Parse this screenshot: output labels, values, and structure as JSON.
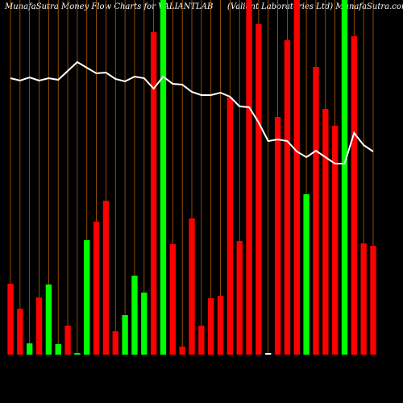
{
  "chart_data": {
    "type": "bar",
    "title": "MunafaSutra  Money Flow  Charts for VALIANTLAB",
    "subtitle": "(Valiant Laboratories Ltd)  MunafaSutra.com",
    "categories": [
      null,
      null,
      null,
      null,
      null,
      null,
      null,
      null,
      null,
      null,
      null,
      null,
      null,
      null,
      null,
      null,
      null,
      null,
      null,
      null,
      null,
      null,
      null,
      null,
      null,
      null,
      null,
      null,
      null,
      null,
      null,
      null,
      null,
      null,
      null,
      null,
      null,
      null,
      null
    ],
    "values": [
      88,
      57,
      14,
      71,
      87,
      13,
      36,
      2,
      142,
      165,
      191,
      29,
      49,
      98,
      77,
      400,
      440,
      137,
      10,
      169,
      36,
      70,
      73,
      319,
      141,
      440,
      410,
      2,
      295,
      390,
      440,
      199,
      357,
      305,
      284,
      440,
      395,
      138,
      135
    ],
    "bar_colors": [
      "#ff0000",
      "#ff0000",
      "#00ff00",
      "#ff0000",
      "#00ff00",
      "#00ff00",
      "#ff0000",
      "#00ff00",
      "#00ff00",
      "#ff0000",
      "#ff0000",
      "#ff0000",
      "#00ff00",
      "#00ff00",
      "#00ff00",
      "#ff0000",
      "#00ff00",
      "#ff0000",
      "#ff0000",
      "#ff0000",
      "#ff0000",
      "#ff0000",
      "#ff0000",
      "#ff0000",
      "#ff0000",
      "#ff0000",
      "#ff0000",
      "#ffffff",
      "#ff0000",
      "#ff0000",
      "#ff0000",
      "#00ff00",
      "#ff0000",
      "#ff0000",
      "#ff0000",
      "#00ff00",
      "#ff0000",
      "#ff0000",
      "#ff0000"
    ],
    "line": {
      "color": "#ffffff",
      "values": [
        343,
        340,
        344,
        340,
        343,
        341,
        352,
        363,
        356,
        349,
        350,
        342,
        339,
        345,
        343,
        330,
        345,
        336,
        335,
        326,
        322,
        322,
        325,
        320,
        308,
        307,
        288,
        265,
        267,
        265,
        252,
        245,
        253,
        245,
        237,
        237,
        275,
        260,
        252
      ]
    },
    "ylim": [
      0,
      440
    ],
    "grid": true,
    "grid_color": "#b85c00"
  }
}
